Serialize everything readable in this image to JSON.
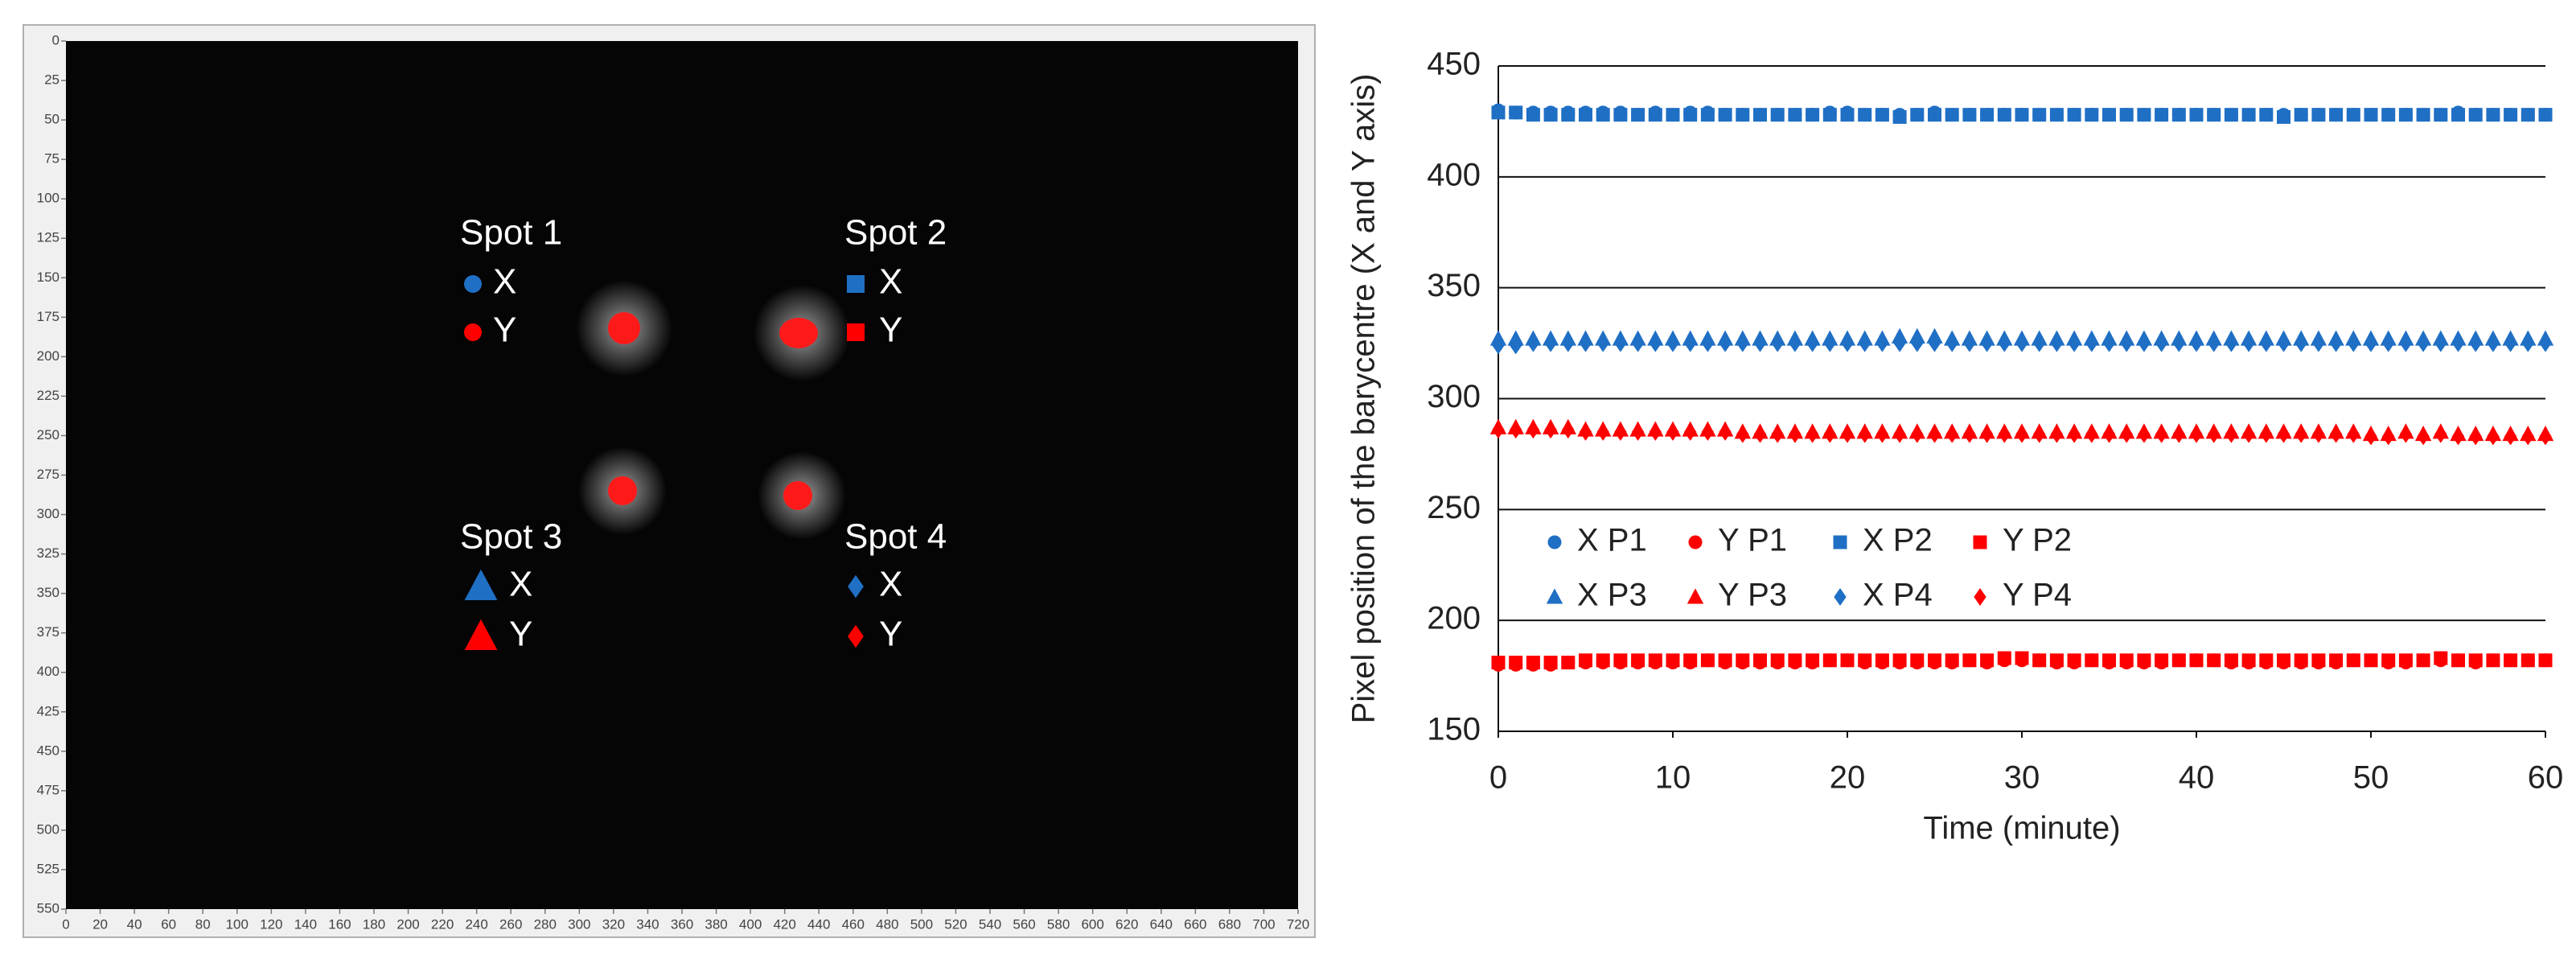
{
  "chart_data": [
    {
      "type": "image",
      "xlim": [
        0,
        720
      ],
      "ylim": [
        0,
        550
      ],
      "y_inverted": true,
      "xticks": [
        0,
        20,
        40,
        60,
        80,
        100,
        120,
        140,
        160,
        180,
        200,
        220,
        240,
        260,
        280,
        300,
        320,
        340,
        360,
        380,
        400,
        420,
        440,
        460,
        480,
        500,
        520,
        540,
        560,
        580,
        600,
        620,
        640,
        660,
        680,
        700,
        720
      ],
      "yticks": [
        0,
        25,
        50,
        75,
        100,
        125,
        150,
        175,
        200,
        225,
        250,
        275,
        300,
        325,
        350,
        375,
        400,
        425,
        450,
        475,
        500,
        525,
        550
      ],
      "spots": [
        {
          "label": "Spot 1",
          "x_label": "X",
          "y_label": "Y"
        },
        {
          "label": "Spot 2",
          "x_label": "X",
          "y_label": "Y"
        },
        {
          "label": "Spot 3",
          "x_label": "X",
          "y_label": "Y"
        },
        {
          "label": "Spot 4",
          "x_label": "X",
          "y_label": "Y"
        }
      ]
    },
    {
      "type": "scatter",
      "x_label": "Time (minute)",
      "y_label": "Pixel position of the barycentre (X and Y axis)",
      "xlim": [
        0,
        60
      ],
      "xticks": [
        0,
        10,
        20,
        30,
        40,
        50,
        60
      ],
      "ylim": [
        150,
        450
      ],
      "yticks": [
        150,
        200,
        250,
        300,
        350,
        400,
        450
      ],
      "grid": true,
      "legend": "lower left",
      "x": [
        0,
        1,
        2,
        3,
        4,
        5,
        6,
        7,
        8,
        9,
        10,
        11,
        12,
        13,
        14,
        15,
        16,
        17,
        18,
        19,
        20,
        21,
        22,
        23,
        24,
        25,
        26,
        27,
        28,
        29,
        30,
        31,
        32,
        33,
        34,
        35,
        36,
        37,
        38,
        39,
        40,
        41,
        42,
        43,
        44,
        45,
        46,
        47,
        48,
        49,
        50,
        51,
        52,
        53,
        54,
        55,
        56,
        57,
        58,
        59,
        60
      ],
      "series": [
        {
          "name": "X P1",
          "color": "#1f6fc5",
          "marker": "circle",
          "values": [
            430,
            429,
            429,
            429,
            429,
            429,
            429,
            429,
            428,
            429,
            428,
            429,
            429,
            428,
            428,
            428,
            428,
            428,
            428,
            429,
            429,
            428,
            428,
            428,
            428,
            429,
            428,
            428,
            428,
            428,
            428,
            428,
            428,
            428,
            428,
            428,
            428,
            428,
            428,
            428,
            428,
            428,
            428,
            428,
            428,
            428,
            428,
            428,
            428,
            428,
            428,
            428,
            428,
            428,
            428,
            429,
            428,
            428,
            428,
            428,
            428
          ]
        },
        {
          "name": "Y P1",
          "color": "#ff0000",
          "marker": "circle",
          "values": [
            180,
            180,
            180,
            180,
            181,
            181,
            181,
            181,
            181,
            181,
            181,
            181,
            182,
            181,
            181,
            181,
            181,
            181,
            181,
            182,
            182,
            181,
            181,
            181,
            181,
            181,
            181,
            182,
            181,
            182,
            182,
            182,
            181,
            181,
            182,
            181,
            181,
            181,
            181,
            182,
            182,
            182,
            181,
            181,
            181,
            181,
            181,
            181,
            181,
            182,
            182,
            181,
            181,
            182,
            182,
            182,
            181,
            182,
            182,
            182,
            182
          ]
        },
        {
          "name": "X P2",
          "color": "#1f6fc5",
          "marker": "square",
          "values": [
            429,
            429,
            428,
            428,
            428,
            428,
            428,
            428,
            428,
            428,
            428,
            428,
            428,
            428,
            428,
            428,
            428,
            428,
            428,
            428,
            428,
            428,
            428,
            427,
            428,
            428,
            428,
            428,
            428,
            428,
            428,
            428,
            428,
            428,
            428,
            428,
            428,
            428,
            428,
            428,
            428,
            428,
            428,
            428,
            428,
            427,
            428,
            428,
            428,
            428,
            428,
            428,
            428,
            428,
            428,
            428,
            428,
            428,
            428,
            428,
            428
          ]
        },
        {
          "name": "Y P2",
          "color": "#ff0000",
          "marker": "square",
          "values": [
            181,
            181,
            181,
            181,
            181,
            182,
            182,
            182,
            182,
            182,
            182,
            182,
            182,
            182,
            182,
            182,
            182,
            182,
            182,
            182,
            182,
            182,
            182,
            182,
            182,
            182,
            182,
            182,
            182,
            183,
            183,
            182,
            182,
            182,
            182,
            182,
            182,
            182,
            182,
            182,
            182,
            182,
            182,
            182,
            182,
            182,
            182,
            182,
            182,
            182,
            182,
            182,
            182,
            182,
            183,
            182,
            182,
            182,
            182,
            182,
            182
          ]
        },
        {
          "name": "X P3",
          "color": "#1f6fc5",
          "marker": "triangle",
          "values": [
            327,
            327,
            327,
            327,
            327,
            327,
            327,
            327,
            327,
            327,
            327,
            327,
            327,
            327,
            327,
            327,
            327,
            327,
            327,
            327,
            327,
            327,
            327,
            328,
            328,
            328,
            327,
            327,
            327,
            327,
            327,
            327,
            327,
            327,
            327,
            327,
            327,
            327,
            327,
            327,
            327,
            327,
            327,
            327,
            327,
            327,
            327,
            327,
            327,
            327,
            327,
            327,
            327,
            327,
            327,
            327,
            327,
            327,
            327,
            327,
            327
          ]
        },
        {
          "name": "Y P3",
          "color": "#ff0000",
          "marker": "triangle",
          "values": [
            287,
            287,
            287,
            287,
            287,
            286,
            286,
            286,
            286,
            286,
            286,
            286,
            286,
            286,
            285,
            285,
            285,
            285,
            285,
            285,
            285,
            285,
            285,
            285,
            285,
            285,
            285,
            285,
            285,
            285,
            285,
            285,
            285,
            285,
            285,
            285,
            285,
            285,
            285,
            285,
            285,
            285,
            285,
            285,
            285,
            285,
            285,
            285,
            285,
            285,
            284,
            284,
            285,
            284,
            285,
            284,
            284,
            284,
            284,
            284,
            284
          ]
        },
        {
          "name": "X P4",
          "color": "#1f6fc5",
          "marker": "diamond",
          "values": [
            324,
            324,
            325,
            325,
            325,
            325,
            325,
            325,
            325,
            325,
            325,
            325,
            325,
            325,
            325,
            325,
            325,
            325,
            325,
            325,
            325,
            325,
            325,
            325,
            325,
            325,
            325,
            325,
            325,
            325,
            325,
            325,
            325,
            325,
            325,
            325,
            325,
            325,
            325,
            325,
            325,
            325,
            325,
            325,
            325,
            325,
            325,
            325,
            325,
            325,
            325,
            325,
            325,
            325,
            325,
            325,
            325,
            325,
            325,
            325,
            325
          ]
        },
        {
          "name": "Y P4",
          "color": "#ff0000",
          "marker": "diamond",
          "values": [
            286,
            286,
            286,
            286,
            286,
            285,
            285,
            285,
            285,
            285,
            285,
            285,
            285,
            285,
            284,
            284,
            284,
            284,
            284,
            284,
            284,
            284,
            284,
            284,
            284,
            284,
            284,
            284,
            284,
            284,
            284,
            284,
            284,
            284,
            284,
            284,
            284,
            284,
            284,
            284,
            284,
            284,
            284,
            284,
            284,
            284,
            284,
            284,
            284,
            284,
            283,
            283,
            284,
            283,
            284,
            283,
            283,
            283,
            283,
            283,
            283
          ]
        }
      ]
    }
  ]
}
